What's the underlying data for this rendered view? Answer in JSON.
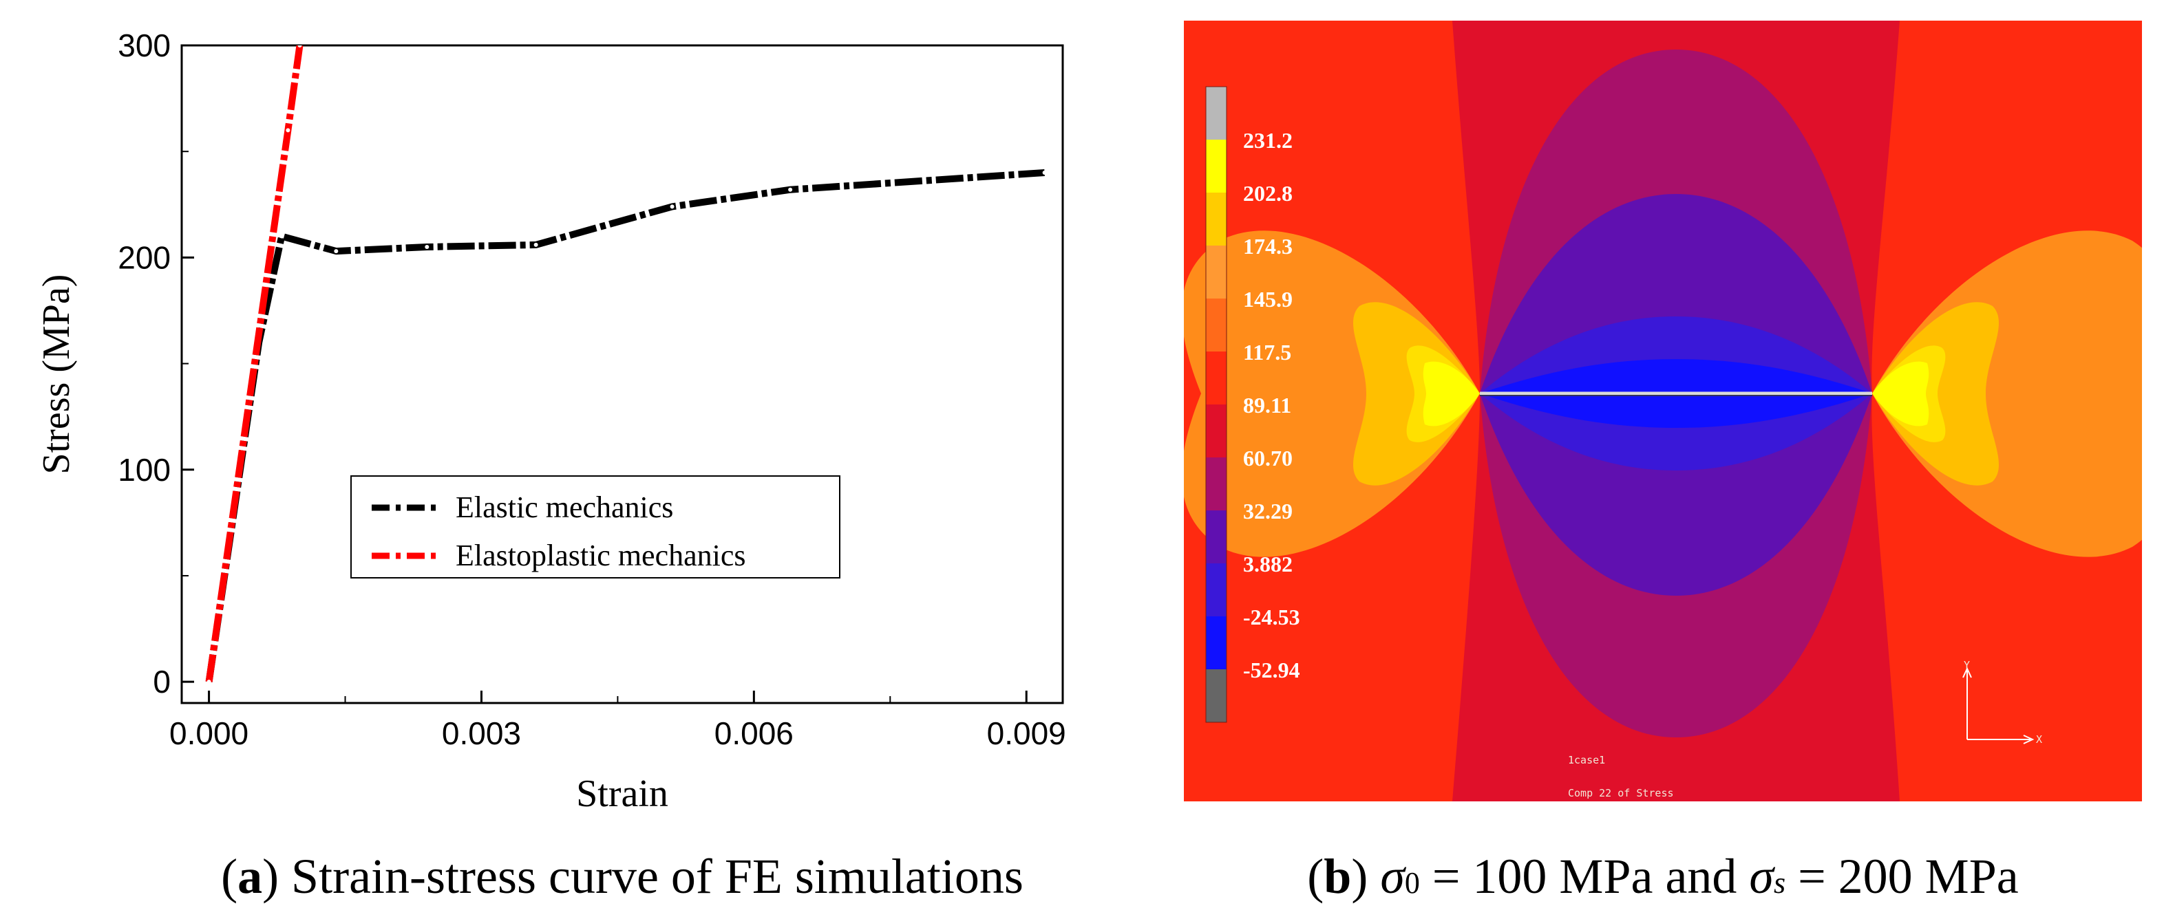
{
  "chart_data": [
    {
      "type": "line",
      "title": "",
      "xlabel": "Strain",
      "ylabel": "Stress (MPa)",
      "xlim": [
        -0.0003,
        0.0094
      ],
      "ylim": [
        -10,
        300
      ],
      "xticks": [
        0.0,
        0.003,
        0.006,
        0.009
      ],
      "xtick_labels": [
        "0.000",
        "0.003",
        "0.006",
        "0.009"
      ],
      "yticks": [
        0,
        100,
        200,
        300
      ],
      "ytick_labels": [
        "0",
        "100",
        "200",
        "300"
      ],
      "legend_position": "center",
      "series": [
        {
          "name": "Elastic mechanics",
          "color": "#000000",
          "style": "dash-dot",
          "x": [
            0.0,
            0.00055,
            0.0008,
            0.0014,
            0.0024,
            0.0036,
            0.0051,
            0.0064,
            0.0092
          ],
          "y": [
            0,
            160,
            210,
            203,
            205,
            206,
            224,
            232,
            240
          ]
        },
        {
          "name": "Elastoplastic mechanics",
          "color": "#ff0000",
          "style": "dash-dot",
          "x": [
            0.0,
            0.00087,
            0.001
          ],
          "y": [
            0,
            260,
            300
          ]
        }
      ]
    },
    {
      "type": "heatmap",
      "title": "σ0 = 100 MPa and σs = 200 MPa",
      "colorbar_labels": [
        "231.2",
        "202.8",
        "174.3",
        "145.9",
        "117.5",
        "89.11",
        "60.70",
        "32.29",
        "3.882",
        "-24.53",
        "-52.94"
      ],
      "colorbar_colors": [
        "#b8b8b8",
        "#ffff00",
        "#ffcc00",
        "#ff9933",
        "#ff6a1a",
        "#ff2a10",
        "#e0102a",
        "#a8106a",
        "#6010b0",
        "#3a18d8",
        "#1010ff",
        "#666666"
      ],
      "annotations": [
        "1case1",
        "Comp 22 of Stress"
      ],
      "axis_labels": [
        "Y",
        "X"
      ]
    }
  ],
  "captions": {
    "a": {
      "tag": "a",
      "text": "Strain-stress curve of FE simulations"
    },
    "b": {
      "tag": "b",
      "sigma0_sub": "0",
      "part1": " = 100 MPa and ",
      "sigmas_sub": "s",
      "part2": " = 200 MPa"
    }
  },
  "glyphs": {
    "sigma": "σ",
    "open": "(",
    "close": ")"
  }
}
